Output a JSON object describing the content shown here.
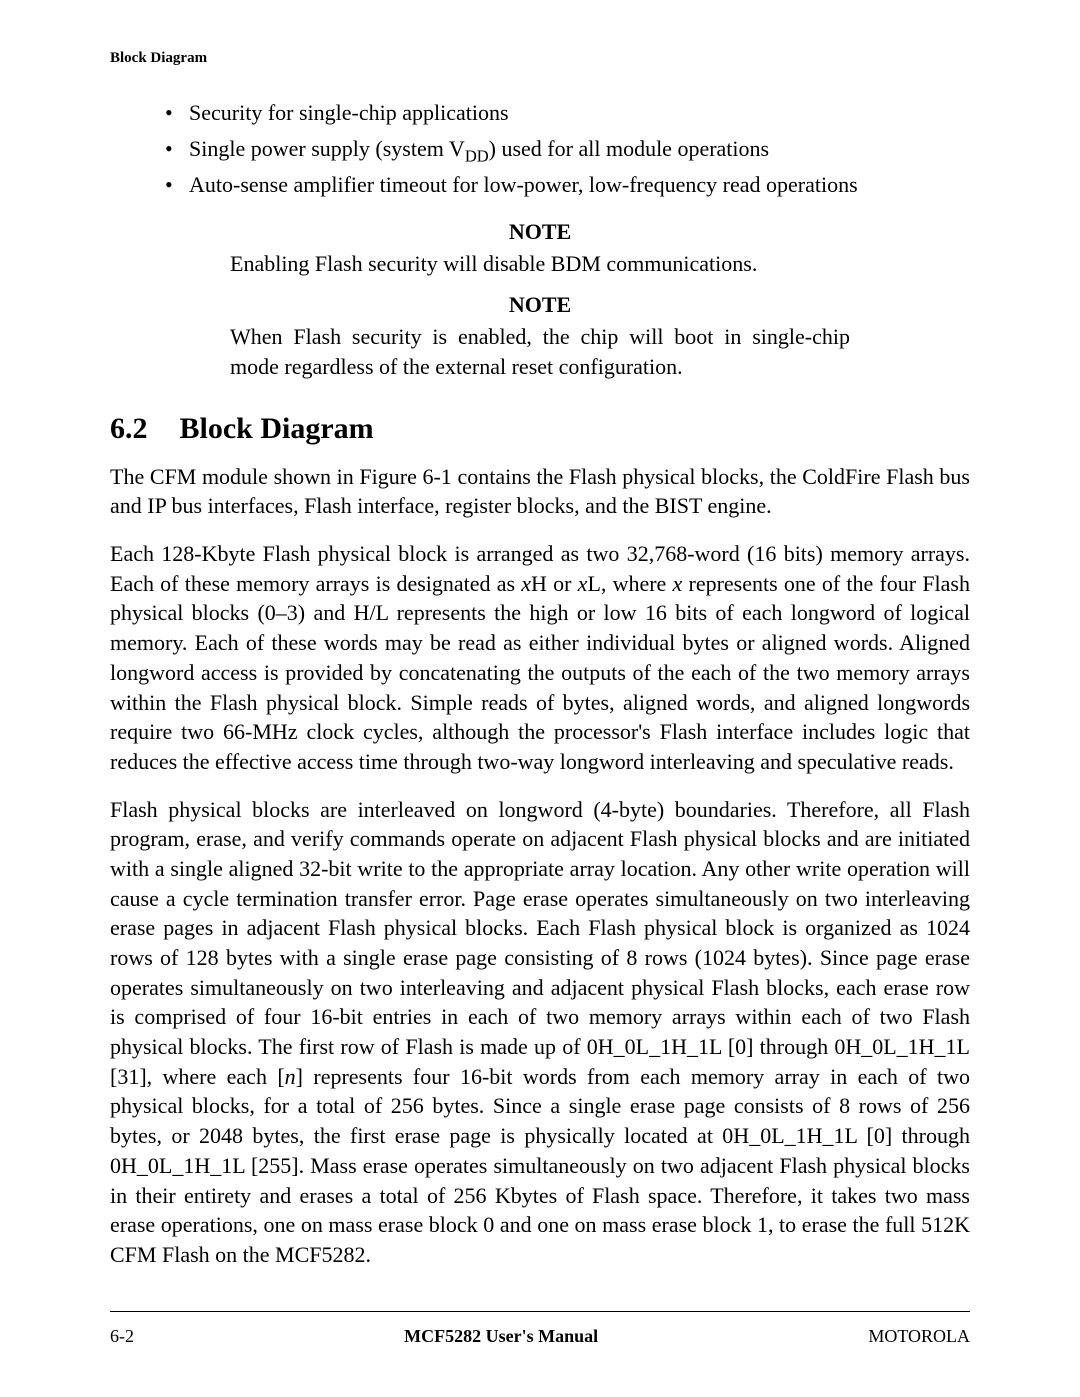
{
  "running_header": "Block Diagram",
  "features": {
    "item1": "Security for single-chip applications",
    "item2_pre": "Single power supply (system V",
    "item2_sub": "DD",
    "item2_post": ") used for all module operations",
    "item3": "Auto-sense amplifier timeout for low-power, low-frequency read operations"
  },
  "note1": {
    "label": "NOTE",
    "text": "Enabling Flash security will disable BDM communications."
  },
  "note2": {
    "label": "NOTE",
    "text": "When Flash security is enabled, the chip will boot in single-chip mode regardless of the external reset configuration."
  },
  "section": {
    "number": "6.2",
    "title": "Block Diagram"
  },
  "para1": "The CFM module shown in Figure 6-1 contains the Flash physical blocks, the ColdFire Flash bus and IP bus interfaces, Flash interface, register blocks, and the BIST engine.",
  "para2": {
    "t1": "Each 128-Kbyte Flash physical block is arranged as two 32,768-word (16 bits) memory arrays. Each of these memory arrays is designated as ",
    "i1": "x",
    "t2": "H or ",
    "i2": "x",
    "t3": "L, where ",
    "i3": "x",
    "t4": " represents one of the four Flash physical blocks (0–3) and H/L represents the high or low 16 bits of each longword of logical memory. Each of these words may be read as either individual bytes or aligned words. Aligned longword access is provided by concatenating the outputs of the each of the two memory arrays within the Flash physical block. Simple reads of bytes, aligned words, and aligned longwords require two 66-MHz clock cycles, although the processor's Flash interface includes logic that reduces the effective access time through two-way longword interleaving and speculative reads."
  },
  "para3": {
    "t1": "Flash physical blocks are interleaved on longword (4-byte) boundaries. Therefore, all Flash program, erase, and verify commands operate on adjacent Flash physical blocks and are initiated with a single aligned 32-bit write to the appropriate array location. Any other write operation will cause a cycle termination transfer error. Page erase operates simultaneously on two interleaving erase pages in adjacent Flash physical blocks. Each Flash physical block is organized as 1024 rows of 128 bytes with a single erase page consisting of 8 rows (1024 bytes). Since page erase operates simultaneously on two interleaving and adjacent physical Flash blocks, each erase row is comprised of four 16-bit entries in each of two memory arrays within each of two Flash physical blocks. The first row of Flash is made up of 0H_0L_1H_1L [0] through 0H_0L_1H_1L [31], where each [",
    "i1": "n",
    "t2": "] represents four 16-bit words from each memory array in each of two physical blocks, for a total of 256 bytes. Since a single erase page consists of 8 rows of 256 bytes, or 2048 bytes, the first erase page is physically located at 0H_0L_1H_1L [0] through 0H_0L_1H_1L [255]. Mass erase operates simultaneously on two adjacent Flash physical blocks in their entirety and erases a total of 256 Kbytes of Flash space. Therefore, it takes two mass erase operations, one on mass erase block 0 and one on mass erase block 1, to erase the full 512K CFM Flash on the MCF5282."
  },
  "footer": {
    "left": "6-2",
    "center": "MCF5282 User's Manual",
    "right": "MOTOROLA"
  },
  "colors": {
    "text": "#000000",
    "background": "#ffffff",
    "rule": "#000000"
  },
  "typography": {
    "body_font": "Times New Roman",
    "body_size_pt": 12,
    "heading_size_pt": 16,
    "running_header_size_pt": 8
  }
}
